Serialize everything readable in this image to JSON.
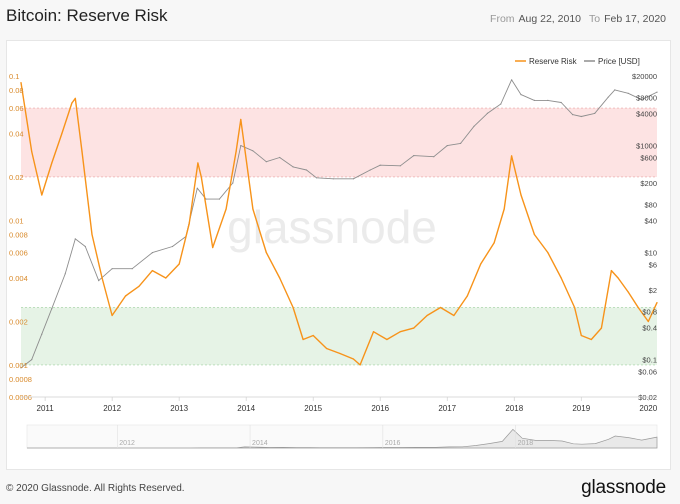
{
  "header": {
    "title": "Bitcoin: Reserve Risk",
    "from_label": "From",
    "from_value": "Aug 22, 2010",
    "to_label": "To",
    "to_value": "Feb 17, 2020"
  },
  "watermark": "glassnode",
  "footer": {
    "copyright": "© 2020 Glassnode. All Rights Reserved.",
    "brand": "glassnode"
  },
  "colors": {
    "reserve_risk": "#f7931a",
    "price": "#8e8e8e",
    "red_band": "#fde3e3",
    "green_band": "#e6f3e6"
  },
  "chart_data": {
    "type": "line",
    "title": "Bitcoin: Reserve Risk",
    "legend_position": "top-right",
    "x_ticks": [
      "2011",
      "2012",
      "2013",
      "2014",
      "2015",
      "2016",
      "2017",
      "2018",
      "2019",
      "2020"
    ],
    "left_axis": {
      "scale": "log",
      "ticks": [
        "0.1",
        "0.08",
        "0.06",
        "0.04",
        "0.02",
        "0.01",
        "0.008",
        "0.006",
        "0.004",
        "0.002",
        "0.001",
        "0.0008",
        "0.0006"
      ],
      "ylim": [
        0.0006,
        0.1
      ]
    },
    "right_axis": {
      "scale": "log",
      "ticks": [
        "$20000",
        "$8000",
        "$4000",
        "$1000",
        "$600",
        "$200",
        "$80",
        "$40",
        "$10",
        "$6",
        "$2",
        "$0.8",
        "$0.4",
        "$0.1",
        "$0.06",
        "$0.02"
      ],
      "ylim": [
        0.02,
        20000
      ]
    },
    "bands": [
      {
        "name": "high",
        "axis": "left",
        "range": [
          0.02,
          0.06
        ],
        "color": "#fde3e3"
      },
      {
        "name": "low",
        "axis": "left",
        "range": [
          0.001,
          0.0025
        ],
        "color": "#e6f3e6"
      }
    ],
    "navigator_ticks": [
      "2012",
      "2014",
      "2016",
      "2018"
    ],
    "series": [
      {
        "name": "Reserve Risk",
        "axis": "left",
        "color": "#f7931a",
        "x": [
          2010.64,
          2010.8,
          2010.95,
          2011.1,
          2011.25,
          2011.4,
          2011.45,
          2011.55,
          2011.7,
          2011.85,
          2012.0,
          2012.2,
          2012.4,
          2012.6,
          2012.8,
          2013.0,
          2013.15,
          2013.28,
          2013.33,
          2013.5,
          2013.7,
          2013.85,
          2013.92,
          2014.1,
          2014.3,
          2014.5,
          2014.7,
          2014.85,
          2015.0,
          2015.2,
          2015.4,
          2015.6,
          2015.7,
          2015.9,
          2016.1,
          2016.3,
          2016.5,
          2016.7,
          2016.9,
          2017.1,
          2017.3,
          2017.5,
          2017.7,
          2017.85,
          2017.96,
          2018.1,
          2018.3,
          2018.5,
          2018.7,
          2018.9,
          2019.0,
          2019.15,
          2019.3,
          2019.45,
          2019.55,
          2019.7,
          2019.85,
          2020.0,
          2020.13
        ],
        "values": [
          0.09,
          0.03,
          0.015,
          0.025,
          0.04,
          0.065,
          0.07,
          0.03,
          0.008,
          0.004,
          0.0022,
          0.003,
          0.0035,
          0.0045,
          0.004,
          0.005,
          0.0095,
          0.025,
          0.02,
          0.0065,
          0.012,
          0.03,
          0.05,
          0.012,
          0.006,
          0.004,
          0.0025,
          0.0015,
          0.0016,
          0.0013,
          0.0012,
          0.0011,
          0.001,
          0.0017,
          0.0015,
          0.0017,
          0.0018,
          0.0022,
          0.0025,
          0.0022,
          0.003,
          0.005,
          0.007,
          0.012,
          0.028,
          0.015,
          0.008,
          0.006,
          0.004,
          0.0025,
          0.0016,
          0.0015,
          0.0018,
          0.0045,
          0.004,
          0.0032,
          0.0025,
          0.002,
          0.0027
        ]
      },
      {
        "name": "Price [USD]",
        "axis": "right",
        "color": "#8e8e8e",
        "x": [
          2010.64,
          2010.8,
          2010.95,
          2011.1,
          2011.3,
          2011.45,
          2011.6,
          2011.8,
          2012.0,
          2012.3,
          2012.6,
          2012.9,
          2013.1,
          2013.27,
          2013.4,
          2013.6,
          2013.8,
          2013.92,
          2014.1,
          2014.3,
          2014.5,
          2014.7,
          2014.9,
          2015.05,
          2015.3,
          2015.6,
          2015.85,
          2016.0,
          2016.3,
          2016.5,
          2016.8,
          2017.0,
          2017.2,
          2017.4,
          2017.6,
          2017.8,
          2017.96,
          2018.1,
          2018.3,
          2018.5,
          2018.7,
          2018.87,
          2019.0,
          2019.2,
          2019.4,
          2019.5,
          2019.7,
          2019.9,
          2020.13
        ],
        "values": [
          0.07,
          0.1,
          0.3,
          0.9,
          4,
          18,
          13,
          3,
          5,
          5,
          10,
          13,
          20,
          160,
          100,
          100,
          200,
          1000,
          800,
          500,
          600,
          400,
          350,
          250,
          240,
          240,
          350,
          430,
          420,
          650,
          620,
          1000,
          1100,
          2300,
          4000,
          6000,
          17000,
          9000,
          7000,
          7000,
          6400,
          3800,
          3500,
          4000,
          8000,
          11000,
          9500,
          7200,
          10000
        ]
      }
    ]
  }
}
